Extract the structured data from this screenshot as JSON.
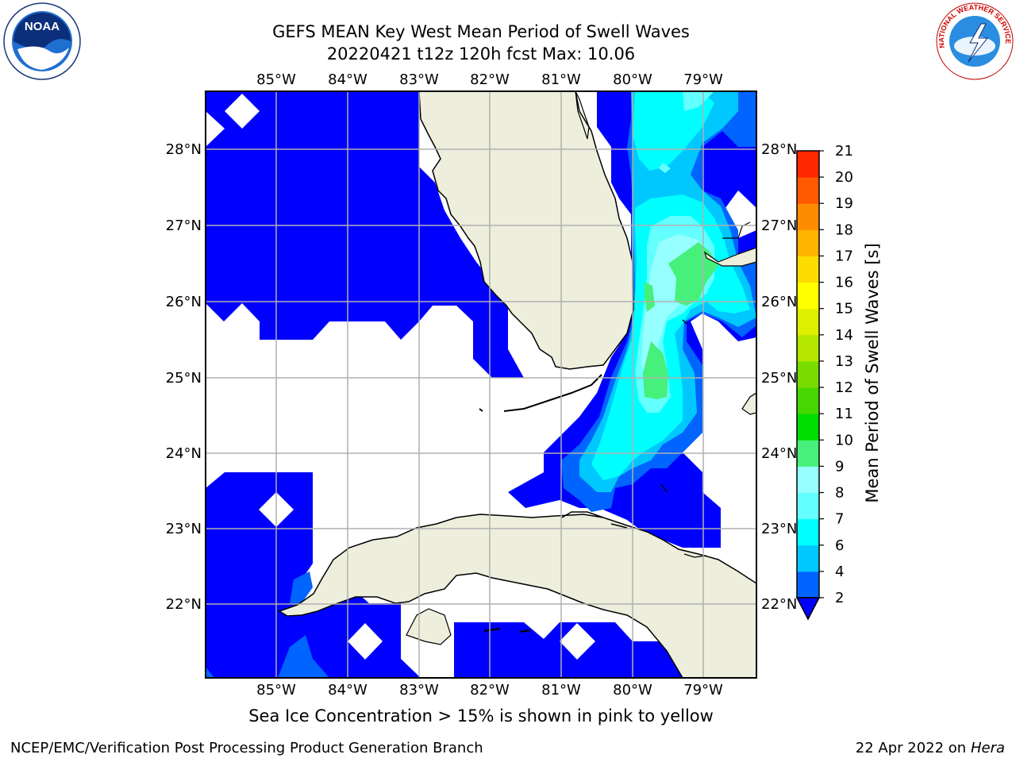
{
  "title": {
    "line1": "GEFS MEAN Key West Mean Period of Swell Waves",
    "line2": "20220421 t12z 120h fcst   Max: 10.06"
  },
  "map": {
    "lon_ticks": [
      "85°W",
      "84°W",
      "83°W",
      "82°W",
      "81°W",
      "80°W",
      "79°W"
    ],
    "lat_ticks": [
      "28°N",
      "27°N",
      "26°N",
      "25°N",
      "24°N",
      "23°N",
      "22°N"
    ],
    "extent": {
      "lon_min": -86.0,
      "lon_max": -78.3,
      "lat_min": 21.1,
      "lat_max": 28.8
    },
    "colors": {
      "land": "#eeeedd",
      "ocean_low": "#0000ff",
      "grid": "#b0b0b0",
      "coast": "#000000"
    }
  },
  "colorbar": {
    "label": "Mean Period of Swell Waves [s]",
    "ticks": [
      "2",
      "4",
      "6",
      "7",
      "8",
      "9",
      "10",
      "11",
      "12",
      "13",
      "14",
      "15",
      "16",
      "17",
      "18",
      "19",
      "20",
      "21"
    ],
    "colors": [
      "#0064ff",
      "#00c8ff",
      "#00ffff",
      "#64ffff",
      "#96ffff",
      "#46f07a",
      "#00dc00",
      "#46d700",
      "#78dc00",
      "#b4e600",
      "#dcf000",
      "#ffff00",
      "#ffdc00",
      "#ffb400",
      "#ff8c00",
      "#ff5a00",
      "#ff2800"
    ],
    "under_color": "#0000ff"
  },
  "footnote": "Sea Ice Concentration > 15% is shown in pink to yellow",
  "credits": {
    "left": "NCEP/EMC/Verification Post Processing Product Generation Branch",
    "right_prefix": "22 Apr 2022 on ",
    "right_host": "Hera"
  },
  "logos": {
    "noaa_text": "NOAA",
    "nws_text": "NATIONAL WEATHER SERVICE"
  }
}
